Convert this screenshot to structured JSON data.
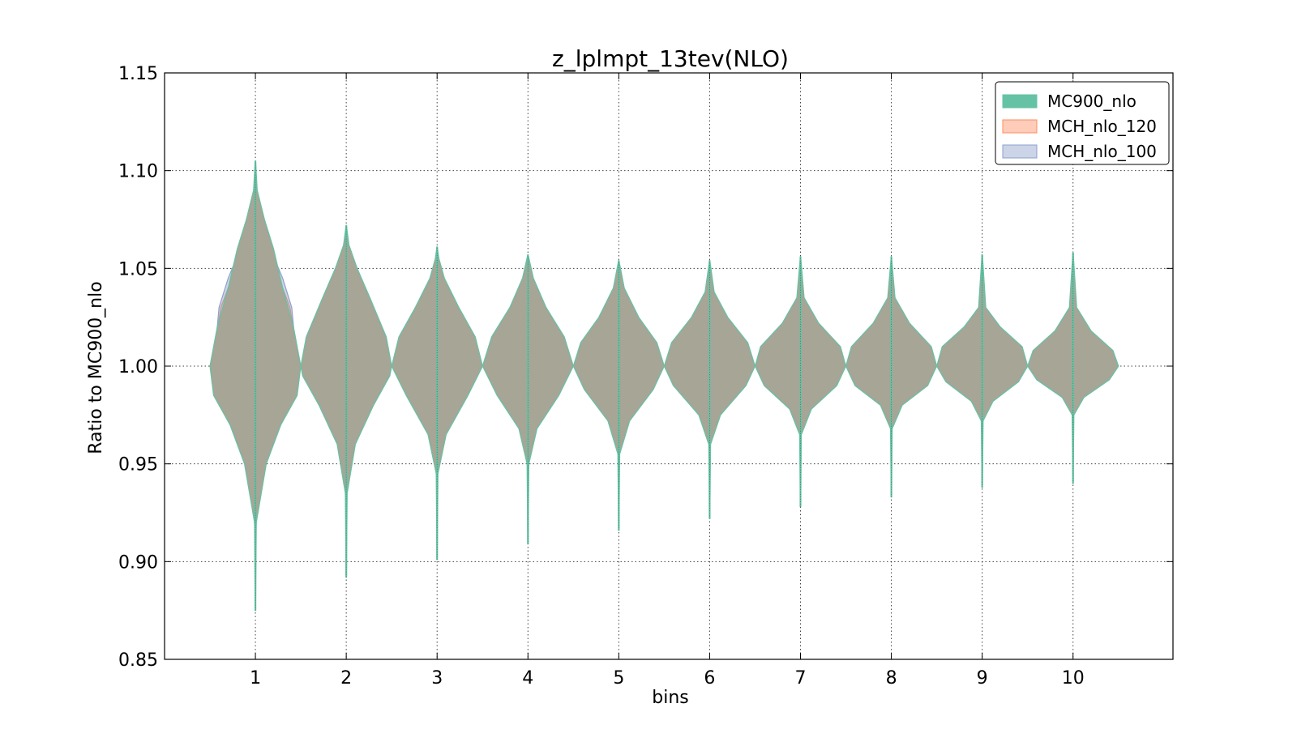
{
  "colors": {
    "MC900_nlo": "#66c2a5",
    "MCH_nlo_120": "#fc8d62",
    "MCH_nlo_100": "#8da0cb",
    "overlap": "#a6a596"
  },
  "chart_data": {
    "type": "violin",
    "title": "z_lplmpt_13tev(NLO)",
    "xlabel": "bins",
    "ylabel": "Ratio to MC900_nlo",
    "ylim": [
      0.85,
      1.15
    ],
    "xlim": [
      0,
      11.1
    ],
    "yticks": [
      "0.85",
      "0.90",
      "0.95",
      "1.00",
      "1.05",
      "1.10",
      "1.15"
    ],
    "yticks_values": [
      0.85,
      0.9,
      0.95,
      1.0,
      1.05,
      1.1,
      1.15
    ],
    "categories": [
      "1",
      "2",
      "3",
      "4",
      "5",
      "6",
      "7",
      "8",
      "9",
      "10"
    ],
    "grid": true,
    "legend_position": "top-right",
    "series": [
      {
        "name": "MC900_nlo",
        "violins": [
          {
            "bin": 1,
            "min": 0.875,
            "max": 1.105,
            "width_profile": [
              [
                0.875,
                0.002
              ],
              [
                0.92,
                0.01
              ],
              [
                0.95,
                0.12
              ],
              [
                0.97,
                0.28
              ],
              [
                0.985,
                0.46
              ],
              [
                1.0,
                0.5
              ],
              [
                1.02,
                0.42
              ],
              [
                1.04,
                0.3
              ],
              [
                1.06,
                0.2
              ],
              [
                1.075,
                0.1
              ],
              [
                1.09,
                0.02
              ],
              [
                1.105,
                0.002
              ]
            ]
          },
          {
            "bin": 2,
            "min": 0.892,
            "max": 1.072,
            "width_profile": [
              [
                0.892,
                0.002
              ],
              [
                0.935,
                0.01
              ],
              [
                0.96,
                0.1
              ],
              [
                0.98,
                0.3
              ],
              [
                0.995,
                0.48
              ],
              [
                1.0,
                0.5
              ],
              [
                1.015,
                0.44
              ],
              [
                1.035,
                0.26
              ],
              [
                1.05,
                0.12
              ],
              [
                1.062,
                0.03
              ],
              [
                1.072,
                0.002
              ]
            ]
          },
          {
            "bin": 3,
            "min": 0.901,
            "max": 1.061,
            "width_profile": [
              [
                0.901,
                0.002
              ],
              [
                0.945,
                0.01
              ],
              [
                0.965,
                0.1
              ],
              [
                0.985,
                0.34
              ],
              [
                1.0,
                0.5
              ],
              [
                1.015,
                0.42
              ],
              [
                1.03,
                0.24
              ],
              [
                1.045,
                0.08
              ],
              [
                1.055,
                0.02
              ],
              [
                1.061,
                0.002
              ]
            ]
          },
          {
            "bin": 4,
            "min": 0.909,
            "max": 1.057,
            "width_profile": [
              [
                0.909,
                0.002
              ],
              [
                0.95,
                0.01
              ],
              [
                0.968,
                0.1
              ],
              [
                0.985,
                0.34
              ],
              [
                1.0,
                0.5
              ],
              [
                1.015,
                0.4
              ],
              [
                1.03,
                0.2
              ],
              [
                1.045,
                0.06
              ],
              [
                1.057,
                0.002
              ]
            ]
          },
          {
            "bin": 5,
            "min": 0.916,
            "max": 1.054,
            "width_profile": [
              [
                0.916,
                0.002
              ],
              [
                0.955,
                0.01
              ],
              [
                0.972,
                0.12
              ],
              [
                0.988,
                0.38
              ],
              [
                1.0,
                0.5
              ],
              [
                1.012,
                0.42
              ],
              [
                1.025,
                0.22
              ],
              [
                1.04,
                0.06
              ],
              [
                1.054,
                0.002
              ]
            ]
          },
          {
            "bin": 6,
            "min": 0.922,
            "max": 1.054,
            "width_profile": [
              [
                0.922,
                0.002
              ],
              [
                0.96,
                0.01
              ],
              [
                0.975,
                0.12
              ],
              [
                0.99,
                0.4
              ],
              [
                1.0,
                0.5
              ],
              [
                1.012,
                0.42
              ],
              [
                1.025,
                0.2
              ],
              [
                1.038,
                0.05
              ],
              [
                1.054,
                0.002
              ]
            ]
          },
          {
            "bin": 7,
            "min": 0.928,
            "max": 1.056,
            "width_profile": [
              [
                0.928,
                0.002
              ],
              [
                0.965,
                0.01
              ],
              [
                0.978,
                0.12
              ],
              [
                0.99,
                0.4
              ],
              [
                1.0,
                0.5
              ],
              [
                1.01,
                0.44
              ],
              [
                1.022,
                0.2
              ],
              [
                1.035,
                0.04
              ],
              [
                1.056,
                0.002
              ]
            ]
          },
          {
            "bin": 8,
            "min": 0.933,
            "max": 1.056,
            "width_profile": [
              [
                0.933,
                0.002
              ],
              [
                0.968,
                0.01
              ],
              [
                0.98,
                0.12
              ],
              [
                0.99,
                0.4
              ],
              [
                1.0,
                0.5
              ],
              [
                1.01,
                0.44
              ],
              [
                1.022,
                0.2
              ],
              [
                1.035,
                0.04
              ],
              [
                1.056,
                0.002
              ]
            ]
          },
          {
            "bin": 9,
            "min": 0.938,
            "max": 1.057,
            "width_profile": [
              [
                0.938,
                0.002
              ],
              [
                0.972,
                0.01
              ],
              [
                0.982,
                0.12
              ],
              [
                0.992,
                0.4
              ],
              [
                1.0,
                0.5
              ],
              [
                1.01,
                0.44
              ],
              [
                1.02,
                0.2
              ],
              [
                1.03,
                0.04
              ],
              [
                1.057,
                0.002
              ]
            ]
          },
          {
            "bin": 10,
            "min": 0.94,
            "max": 1.058,
            "width_profile": [
              [
                0.94,
                0.002
              ],
              [
                0.975,
                0.01
              ],
              [
                0.984,
                0.12
              ],
              [
                0.993,
                0.4
              ],
              [
                1.0,
                0.5
              ],
              [
                1.008,
                0.44
              ],
              [
                1.018,
                0.2
              ],
              [
                1.03,
                0.04
              ],
              [
                1.058,
                0.002
              ]
            ]
          }
        ]
      },
      {
        "name": "MCH_nlo_120",
        "violins": [
          {
            "bin": 1,
            "min": 0.92,
            "max": 1.08,
            "width_profile": [
              [
                0.92,
                0.002
              ],
              [
                0.95,
                0.08
              ],
              [
                0.97,
                0.2
              ],
              [
                0.99,
                0.38
              ],
              [
                1.01,
                0.45
              ],
              [
                1.03,
                0.38
              ],
              [
                1.05,
                0.22
              ],
              [
                1.07,
                0.08
              ],
              [
                1.08,
                0.002
              ]
            ]
          }
        ]
      },
      {
        "name": "MCH_nlo_100",
        "violins": [
          {
            "bin": 1,
            "min": 0.915,
            "max": 1.085,
            "width_profile": [
              [
                0.915,
                0.002
              ],
              [
                0.95,
                0.06
              ],
              [
                0.97,
                0.16
              ],
              [
                0.99,
                0.36
              ],
              [
                1.01,
                0.44
              ],
              [
                1.03,
                0.4
              ],
              [
                1.045,
                0.3
              ],
              [
                1.065,
                0.12
              ],
              [
                1.085,
                0.002
              ]
            ]
          }
        ]
      }
    ]
  }
}
